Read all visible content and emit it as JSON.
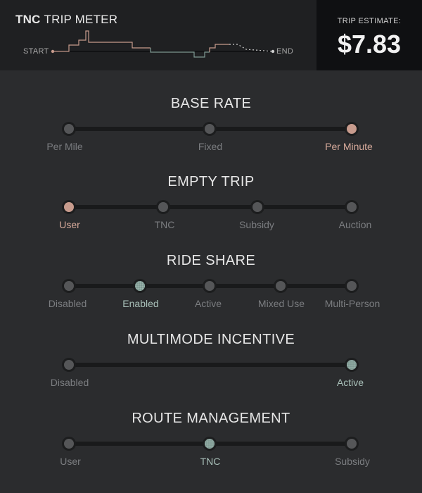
{
  "header": {
    "title_bold": "TNC",
    "title_rest": "TRIP METER",
    "start_label": "START",
    "end_label": "END",
    "estimate_label": "TRIP ESTIMATE:",
    "estimate_value": "$7.83"
  },
  "colors": {
    "warm_accent": "#c79b8d",
    "cool_accent": "#7f9a93",
    "node_idle": "#555658"
  },
  "sections": [
    {
      "title": "BASE RATE",
      "options": [
        "Per Mile",
        "Fixed",
        "Per Minute"
      ],
      "selected": 2,
      "accent": "warm"
    },
    {
      "title": "EMPTY TRIP",
      "options": [
        "User",
        "TNC",
        "Subsidy",
        "Auction"
      ],
      "selected": 0,
      "accent": "warm"
    },
    {
      "title": "RIDE SHARE",
      "options": [
        "Disabled",
        "Enabled",
        "Active",
        "Mixed Use",
        "Multi-Person"
      ],
      "selected": 1,
      "accent": "cool"
    },
    {
      "title": "MULTIMODE INCENTIVE",
      "options": [
        "Disabled",
        "Active"
      ],
      "selected": 1,
      "accent": "cool"
    },
    {
      "title": "ROUTE MANAGEMENT",
      "options": [
        "User",
        "TNC",
        "Subsidy"
      ],
      "selected": 1,
      "accent": "cool"
    }
  ]
}
